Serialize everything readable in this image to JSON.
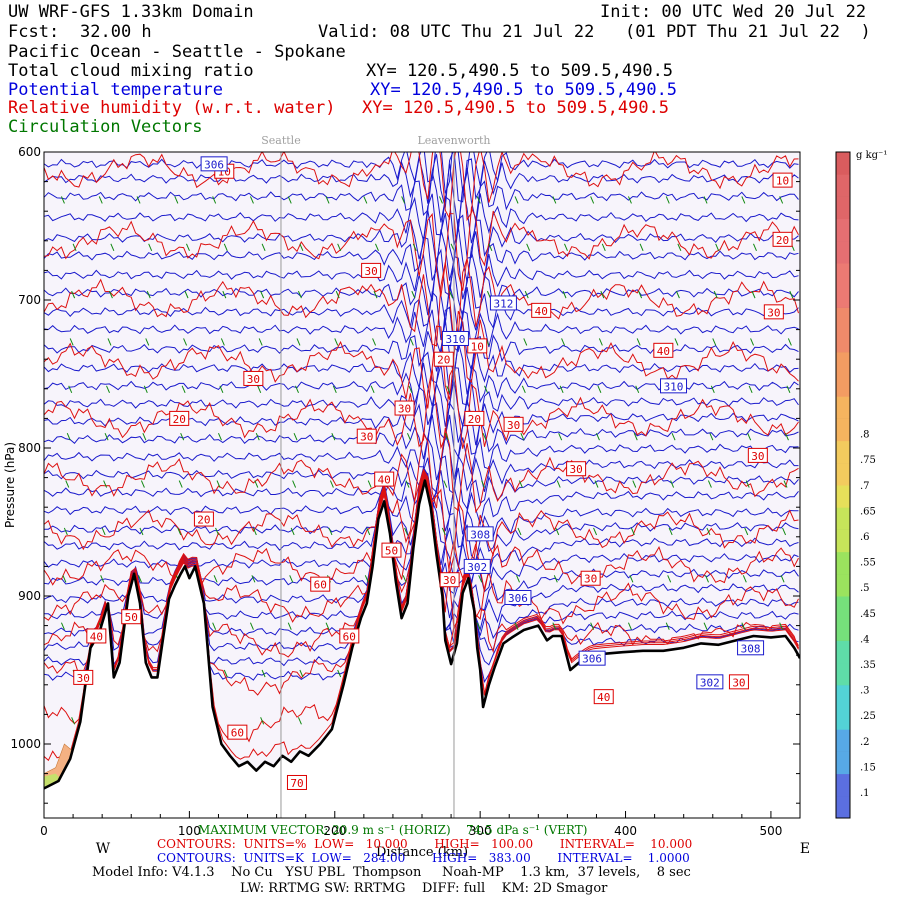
{
  "header": {
    "title_left": "UW WRF-GFS 1.33km Domain",
    "title_right": "Init: 00 UTC Wed 20 Jul 22",
    "fcst_label": "Fcst:",
    "fcst_value": "32.00 h",
    "valid": "Valid: 08 UTC Thu 21 Jul 22   (01 PDT Thu 21 Jul 22  )",
    "region": "Pacific Ocean - Seattle - Spokane",
    "fields": [
      {
        "name": "Total cloud mixing ratio",
        "xy": "XY= 120.5,490.5 to 509.5,490.5",
        "color": "#000000"
      },
      {
        "name": "Potential temperature",
        "xy": "XY= 120.5,490.5 to 509.5,490.5",
        "color": "#0000dd"
      },
      {
        "name": "Relative humidity (w.r.t. water)",
        "xy": "XY= 120.5,490.5 to 509.5,490.5",
        "color": "#dd0000"
      },
      {
        "name": "Circulation Vectors",
        "xy": "",
        "color": "#007700"
      }
    ]
  },
  "footer": {
    "max_vector": "MAXIMUM VECTOR: 20.9 m s⁻¹ (HORIZ)    74.5 dPa s⁻¹ (VERT)",
    "rh_contours": "CONTOURS:  UNITS=%  LOW=   10.000       HIGH=   100.00       INTERVAL=    10.000",
    "th_contours": "CONTOURS:  UNITS=K  LOW=   284.00       HIGH=   383.00       INTERVAL=    1.0000",
    "model_info": "Model Info: V4.1.3    No Cu   YSU PBL  Thompson     Noah-MP    1.3 km,  37 levels,    8 sec",
    "model_info2": "LW: RRTMG SW: RRTMG    DIFF: full    KM: 2D Smagor"
  },
  "chart_data": {
    "type": "cross-section",
    "ylabel": "Pressure (hPa)",
    "xlabel": "Distance (km)",
    "x_direction_left": "W",
    "x_direction_right": "E",
    "xlim": [
      0,
      520
    ],
    "ylim": [
      1050,
      600
    ],
    "x_ticks": [
      0,
      100,
      200,
      300,
      400,
      500
    ],
    "y_ticks": [
      600,
      700,
      800,
      900,
      1000
    ],
    "locations": [
      {
        "name": "Seattle",
        "x": 163
      },
      {
        "name": "Leavenworth",
        "x": 282
      }
    ],
    "colorbar": {
      "units": "g kg⁻¹",
      "labels": [
        ".1",
        ".15",
        ".2",
        ".25",
        ".3",
        ".35",
        ".4",
        ".45",
        ".5",
        ".55",
        ".6",
        ".65",
        ".7",
        ".75",
        ".8"
      ]
    },
    "terrain_pressure": [
      [
        0,
        1030
      ],
      [
        10,
        1025
      ],
      [
        18,
        1010
      ],
      [
        25,
        985
      ],
      [
        32,
        935
      ],
      [
        38,
        925
      ],
      [
        44,
        905
      ],
      [
        48,
        955
      ],
      [
        52,
        945
      ],
      [
        58,
        900
      ],
      [
        62,
        885
      ],
      [
        66,
        905
      ],
      [
        70,
        945
      ],
      [
        74,
        955
      ],
      [
        78,
        955
      ],
      [
        82,
        928
      ],
      [
        86,
        902
      ],
      [
        90,
        893
      ],
      [
        94,
        885
      ],
      [
        97,
        880
      ],
      [
        100,
        888
      ],
      [
        104,
        880
      ],
      [
        110,
        905
      ],
      [
        116,
        975
      ],
      [
        122,
        1000
      ],
      [
        128,
        1008
      ],
      [
        134,
        1015
      ],
      [
        140,
        1012
      ],
      [
        146,
        1018
      ],
      [
        152,
        1012
      ],
      [
        158,
        1015
      ],
      [
        164,
        1008
      ],
      [
        170,
        1012
      ],
      [
        176,
        1005
      ],
      [
        182,
        1008
      ],
      [
        190,
        1000
      ],
      [
        198,
        990
      ],
      [
        206,
        960
      ],
      [
        212,
        935
      ],
      [
        218,
        915
      ],
      [
        222,
        905
      ],
      [
        226,
        880
      ],
      [
        230,
        848
      ],
      [
        234,
        836
      ],
      [
        238,
        858
      ],
      [
        242,
        890
      ],
      [
        246,
        915
      ],
      [
        250,
        905
      ],
      [
        254,
        868
      ],
      [
        258,
        838
      ],
      [
        262,
        822
      ],
      [
        266,
        840
      ],
      [
        270,
        872
      ],
      [
        274,
        900
      ],
      [
        276,
        930
      ],
      [
        280,
        946
      ],
      [
        284,
        932
      ],
      [
        288,
        898
      ],
      [
        292,
        888
      ],
      [
        294,
        900
      ],
      [
        296,
        910
      ],
      [
        298,
        935
      ],
      [
        300,
        950
      ],
      [
        302,
        975
      ],
      [
        306,
        960
      ],
      [
        310,
        948
      ],
      [
        316,
        932
      ],
      [
        322,
        928
      ],
      [
        330,
        923
      ],
      [
        340,
        920
      ],
      [
        346,
        930
      ],
      [
        350,
        927
      ],
      [
        356,
        927
      ],
      [
        362,
        950
      ],
      [
        368,
        945
      ],
      [
        376,
        940
      ],
      [
        386,
        939
      ],
      [
        398,
        938
      ],
      [
        412,
        937
      ],
      [
        426,
        937
      ],
      [
        440,
        935
      ],
      [
        452,
        932
      ],
      [
        464,
        933
      ],
      [
        476,
        930
      ],
      [
        488,
        927
      ],
      [
        500,
        928
      ],
      [
        510,
        927
      ],
      [
        516,
        935
      ],
      [
        520,
        942
      ]
    ],
    "theta_labels": [
      {
        "x": 117,
        "p": 608,
        "text": "306"
      },
      {
        "x": 316,
        "p": 702,
        "text": "312"
      },
      {
        "x": 283,
        "p": 726,
        "text": "310"
      },
      {
        "x": 433,
        "p": 758,
        "text": "310"
      },
      {
        "x": 300,
        "p": 858,
        "text": "308"
      },
      {
        "x": 298,
        "p": 880,
        "text": "302"
      },
      {
        "x": 326,
        "p": 901,
        "text": "306"
      },
      {
        "x": 377,
        "p": 942,
        "text": "306"
      },
      {
        "x": 486,
        "p": 935,
        "text": "308"
      },
      {
        "x": 458,
        "p": 958,
        "text": "302"
      }
    ],
    "rh_labels": [
      {
        "x": 124,
        "p": 613,
        "text": "10"
      },
      {
        "x": 508,
        "p": 619,
        "text": "10"
      },
      {
        "x": 508,
        "p": 659,
        "text": "20"
      },
      {
        "x": 225,
        "p": 680,
        "text": "30"
      },
      {
        "x": 342,
        "p": 707,
        "text": "40"
      },
      {
        "x": 502,
        "p": 708,
        "text": "30"
      },
      {
        "x": 298,
        "p": 731,
        "text": "10"
      },
      {
        "x": 275,
        "p": 740,
        "text": "20"
      },
      {
        "x": 426,
        "p": 734,
        "text": "40"
      },
      {
        "x": 144,
        "p": 753,
        "text": "30"
      },
      {
        "x": 248,
        "p": 773,
        "text": "30"
      },
      {
        "x": 93,
        "p": 780,
        "text": "20"
      },
      {
        "x": 296,
        "p": 780,
        "text": "20"
      },
      {
        "x": 323,
        "p": 784,
        "text": "30"
      },
      {
        "x": 222,
        "p": 792,
        "text": "30"
      },
      {
        "x": 491,
        "p": 805,
        "text": "30"
      },
      {
        "x": 366,
        "p": 814,
        "text": "30"
      },
      {
        "x": 234,
        "p": 821,
        "text": "40"
      },
      {
        "x": 110,
        "p": 848,
        "text": "20"
      },
      {
        "x": 239,
        "p": 869,
        "text": "50"
      },
      {
        "x": 279,
        "p": 889,
        "text": "30"
      },
      {
        "x": 376,
        "p": 888,
        "text": "30"
      },
      {
        "x": 190,
        "p": 892,
        "text": "60"
      },
      {
        "x": 60,
        "p": 914,
        "text": "50"
      },
      {
        "x": 36,
        "p": 927,
        "text": "40"
      },
      {
        "x": 210,
        "p": 927,
        "text": "60"
      },
      {
        "x": 27,
        "p": 955,
        "text": "30"
      },
      {
        "x": 385,
        "p": 968,
        "text": "40"
      },
      {
        "x": 478,
        "p": 958,
        "text": "30"
      },
      {
        "x": 133,
        "p": 992,
        "text": "60"
      },
      {
        "x": 174,
        "p": 1026,
        "text": "70"
      }
    ]
  }
}
